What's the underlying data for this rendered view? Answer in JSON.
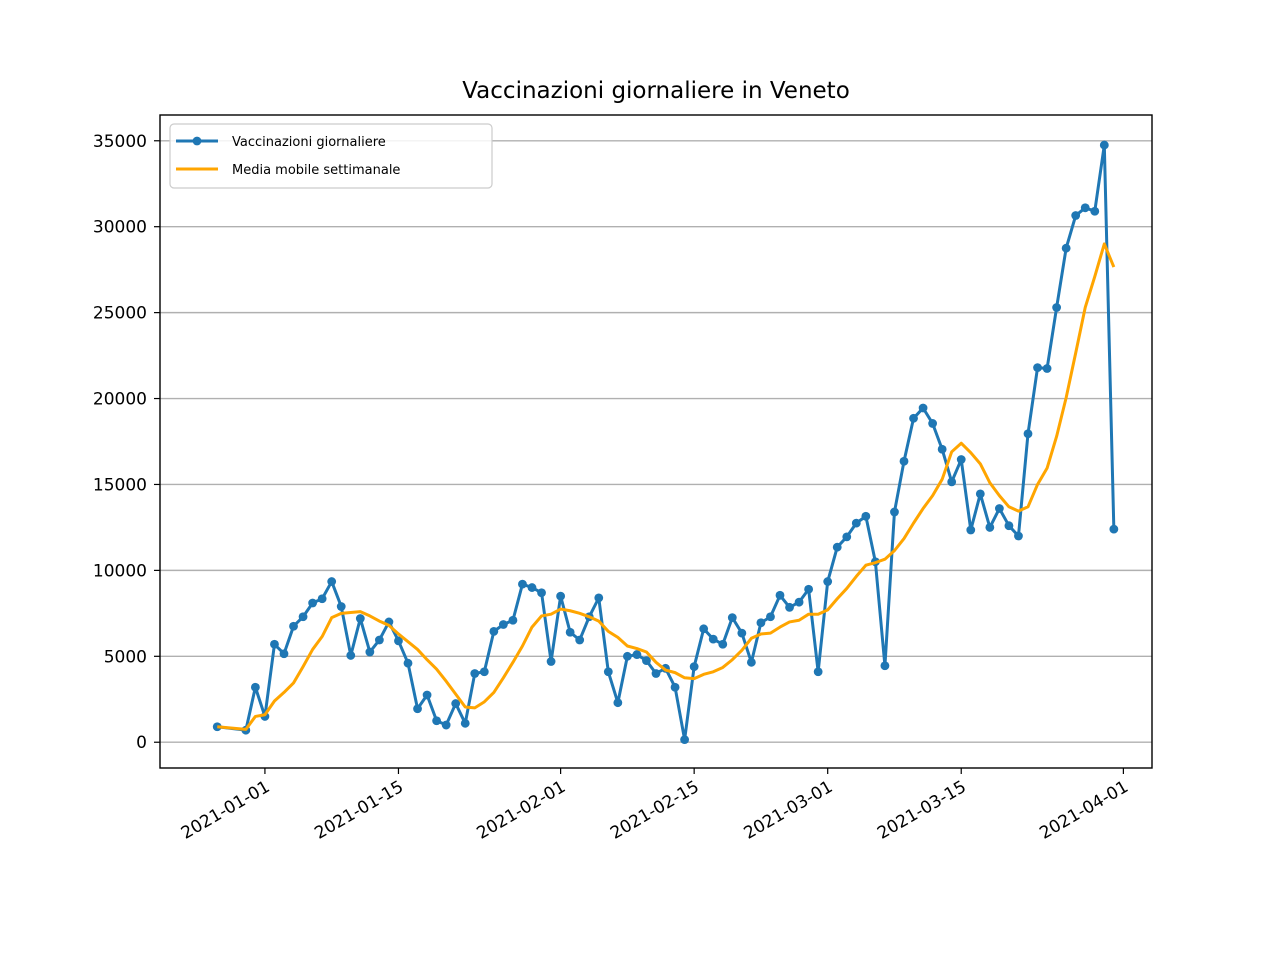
{
  "chart_data": {
    "type": "line",
    "title": "Vaccinazioni giornaliere in Veneto",
    "xlabel": "",
    "ylabel": "",
    "x_axis": {
      "type": "date",
      "range": [
        "2020-12-21",
        "2021-04-04"
      ],
      "ticks": [
        "2021-01-01",
        "2021-01-15",
        "2021-02-01",
        "2021-02-15",
        "2021-03-01",
        "2021-03-15",
        "2021-04-01"
      ]
    },
    "y_axis": {
      "range": [
        -1500,
        36500
      ],
      "ticks": [
        0,
        5000,
        10000,
        15000,
        20000,
        25000,
        30000,
        35000
      ]
    },
    "grid": "horizontal",
    "legend_position": "top-left",
    "series": [
      {
        "name": "Vaccinazioni giornaliere",
        "color": "#1f77b4",
        "marker": "point",
        "points": [
          [
            "2020-12-27",
            900
          ],
          [
            "2020-12-30",
            700
          ],
          [
            "2020-12-31",
            3200
          ],
          [
            "2021-01-01",
            1500
          ],
          [
            "2021-01-02",
            5700
          ],
          [
            "2021-01-03",
            5150
          ],
          [
            "2021-01-04",
            6750
          ],
          [
            "2021-01-05",
            7300
          ],
          [
            "2021-01-06",
            8100
          ],
          [
            "2021-01-07",
            8350
          ],
          [
            "2021-01-08",
            9350
          ],
          [
            "2021-01-09",
            7900
          ],
          [
            "2021-01-10",
            5050
          ],
          [
            "2021-01-11",
            7200
          ],
          [
            "2021-01-12",
            5250
          ],
          [
            "2021-01-13",
            5950
          ],
          [
            "2021-01-14",
            7000
          ],
          [
            "2021-01-15",
            5900
          ],
          [
            "2021-01-16",
            4600
          ],
          [
            "2021-01-17",
            1950
          ],
          [
            "2021-01-18",
            2750
          ],
          [
            "2021-01-19",
            1250
          ],
          [
            "2021-01-20",
            1000
          ],
          [
            "2021-01-21",
            2250
          ],
          [
            "2021-01-22",
            1100
          ],
          [
            "2021-01-23",
            4000
          ],
          [
            "2021-01-24",
            4100
          ],
          [
            "2021-01-25",
            6450
          ],
          [
            "2021-01-26",
            6850
          ],
          [
            "2021-01-27",
            7100
          ],
          [
            "2021-01-28",
            9200
          ],
          [
            "2021-01-29",
            9000
          ],
          [
            "2021-01-30",
            8700
          ],
          [
            "2021-01-31",
            4700
          ],
          [
            "2021-02-01",
            8500
          ],
          [
            "2021-02-02",
            6400
          ],
          [
            "2021-02-03",
            5950
          ],
          [
            "2021-02-04",
            7300
          ],
          [
            "2021-02-05",
            8400
          ],
          [
            "2021-02-06",
            4100
          ],
          [
            "2021-02-07",
            2300
          ],
          [
            "2021-02-08",
            5000
          ],
          [
            "2021-02-09",
            5100
          ],
          [
            "2021-02-10",
            4750
          ],
          [
            "2021-02-11",
            4000
          ],
          [
            "2021-02-12",
            4300
          ],
          [
            "2021-02-13",
            3200
          ],
          [
            "2021-02-14",
            150
          ],
          [
            "2021-02-15",
            4400
          ],
          [
            "2021-02-16",
            6600
          ],
          [
            "2021-02-17",
            6000
          ],
          [
            "2021-02-18",
            5700
          ],
          [
            "2021-02-19",
            7250
          ],
          [
            "2021-02-20",
            6350
          ],
          [
            "2021-02-21",
            4650
          ],
          [
            "2021-02-22",
            6950
          ],
          [
            "2021-02-23",
            7300
          ],
          [
            "2021-02-24",
            8550
          ],
          [
            "2021-02-25",
            7850
          ],
          [
            "2021-02-26",
            8150
          ],
          [
            "2021-02-27",
            8900
          ],
          [
            "2021-02-28",
            4100
          ],
          [
            "2021-03-01",
            9350
          ],
          [
            "2021-03-02",
            11350
          ],
          [
            "2021-03-03",
            11950
          ],
          [
            "2021-03-04",
            12750
          ],
          [
            "2021-03-05",
            13150
          ],
          [
            "2021-03-06",
            10500
          ],
          [
            "2021-03-07",
            4450
          ],
          [
            "2021-03-08",
            13400
          ],
          [
            "2021-03-09",
            16350
          ],
          [
            "2021-03-10",
            18850
          ],
          [
            "2021-03-11",
            19450
          ],
          [
            "2021-03-12",
            18550
          ],
          [
            "2021-03-13",
            17050
          ],
          [
            "2021-03-14",
            15150
          ],
          [
            "2021-03-15",
            16450
          ],
          [
            "2021-03-16",
            12350
          ],
          [
            "2021-03-17",
            14450
          ],
          [
            "2021-03-18",
            12500
          ],
          [
            "2021-03-19",
            13600
          ],
          [
            "2021-03-20",
            12600
          ],
          [
            "2021-03-21",
            12000
          ],
          [
            "2021-03-22",
            17950
          ],
          [
            "2021-03-23",
            21800
          ],
          [
            "2021-03-24",
            21750
          ],
          [
            "2021-03-25",
            25300
          ],
          [
            "2021-03-26",
            28750
          ],
          [
            "2021-03-27",
            30650
          ],
          [
            "2021-03-28",
            31100
          ],
          [
            "2021-03-29",
            30900
          ],
          [
            "2021-03-30",
            34750
          ],
          [
            "2021-03-31",
            12400
          ]
        ]
      },
      {
        "name": "Media mobile settimanale",
        "color": "#ffa500",
        "marker": "none",
        "points": [
          [
            "2020-12-27",
            900
          ],
          [
            "2020-12-30",
            750
          ],
          [
            "2020-12-31",
            1500
          ],
          [
            "2021-01-01",
            1600
          ],
          [
            "2021-01-02",
            2400
          ],
          [
            "2021-01-03",
            2900
          ],
          [
            "2021-01-04",
            3450
          ],
          [
            "2021-01-05",
            4400
          ],
          [
            "2021-01-06",
            5400
          ],
          [
            "2021-01-07",
            6150
          ],
          [
            "2021-01-08",
            7250
          ],
          [
            "2021-01-09",
            7500
          ],
          [
            "2021-01-10",
            7550
          ],
          [
            "2021-01-11",
            7600
          ],
          [
            "2021-01-12",
            7350
          ],
          [
            "2021-01-13",
            7050
          ],
          [
            "2021-01-14",
            6800
          ],
          [
            "2021-01-15",
            6300
          ],
          [
            "2021-01-16",
            5850
          ],
          [
            "2021-01-17",
            5400
          ],
          [
            "2021-01-18",
            4800
          ],
          [
            "2021-01-19",
            4250
          ],
          [
            "2021-01-20",
            3550
          ],
          [
            "2021-01-21",
            2800
          ],
          [
            "2021-01-22",
            2050
          ],
          [
            "2021-01-23",
            2000
          ],
          [
            "2021-01-24",
            2350
          ],
          [
            "2021-01-25",
            2900
          ],
          [
            "2021-01-26",
            3750
          ],
          [
            "2021-01-27",
            4650
          ],
          [
            "2021-01-28",
            5600
          ],
          [
            "2021-01-29",
            6700
          ],
          [
            "2021-01-30",
            7350
          ],
          [
            "2021-01-31",
            7450
          ],
          [
            "2021-02-01",
            7750
          ],
          [
            "2021-02-02",
            7650
          ],
          [
            "2021-02-03",
            7500
          ],
          [
            "2021-02-04",
            7300
          ],
          [
            "2021-02-05",
            7050
          ],
          [
            "2021-02-06",
            6450
          ],
          [
            "2021-02-07",
            6100
          ],
          [
            "2021-02-08",
            5600
          ],
          [
            "2021-02-09",
            5450
          ],
          [
            "2021-02-10",
            5250
          ],
          [
            "2021-02-11",
            4650
          ],
          [
            "2021-02-12",
            4200
          ],
          [
            "2021-02-13",
            4050
          ],
          [
            "2021-02-14",
            3750
          ],
          [
            "2021-02-15",
            3700
          ],
          [
            "2021-02-16",
            3950
          ],
          [
            "2021-02-17",
            4100
          ],
          [
            "2021-02-18",
            4350
          ],
          [
            "2021-02-19",
            4800
          ],
          [
            "2021-02-20",
            5350
          ],
          [
            "2021-02-21",
            6050
          ],
          [
            "2021-02-22",
            6300
          ],
          [
            "2021-02-23",
            6350
          ],
          [
            "2021-02-24",
            6700
          ],
          [
            "2021-02-25",
            7000
          ],
          [
            "2021-02-26",
            7100
          ],
          [
            "2021-02-27",
            7450
          ],
          [
            "2021-02-28",
            7450
          ],
          [
            "2021-03-01",
            7700
          ],
          [
            "2021-03-02",
            8350
          ],
          [
            "2021-03-03",
            8950
          ],
          [
            "2021-03-04",
            9650
          ],
          [
            "2021-03-05",
            10300
          ],
          [
            "2021-03-06",
            10450
          ],
          [
            "2021-03-07",
            10650
          ],
          [
            "2021-03-08",
            11150
          ],
          [
            "2021-03-09",
            11850
          ],
          [
            "2021-03-10",
            12750
          ],
          [
            "2021-03-11",
            13600
          ],
          [
            "2021-03-12",
            14350
          ],
          [
            "2021-03-13",
            15300
          ],
          [
            "2021-03-14",
            16900
          ],
          [
            "2021-03-15",
            17400
          ],
          [
            "2021-03-16",
            16850
          ],
          [
            "2021-03-17",
            16200
          ],
          [
            "2021-03-18",
            15100
          ],
          [
            "2021-03-19",
            14350
          ],
          [
            "2021-03-20",
            13700
          ],
          [
            "2021-03-21",
            13450
          ],
          [
            "2021-03-22",
            13700
          ],
          [
            "2021-03-23",
            15000
          ],
          [
            "2021-03-24",
            15950
          ],
          [
            "2021-03-25",
            17800
          ],
          [
            "2021-03-26",
            20050
          ],
          [
            "2021-03-27",
            22650
          ],
          [
            "2021-03-28",
            25300
          ],
          [
            "2021-03-29",
            27100
          ],
          [
            "2021-03-30",
            29000
          ],
          [
            "2021-03-31",
            27650
          ]
        ]
      }
    ]
  }
}
